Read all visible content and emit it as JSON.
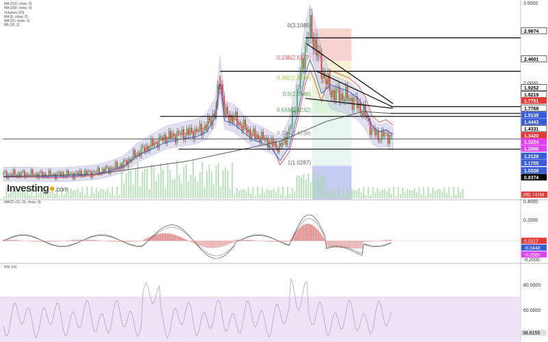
{
  "legend": [
    "MA (100, close, 0)",
    "MA (200, close, 0)",
    "Volumes (20)",
    "MA (5, close, 0)",
    "MA (10, close, 0)",
    "BB (20, 2)"
  ],
  "logo": {
    "name": "Investing",
    "suffix": ".com"
  },
  "macd_label": "MACD (12, 26, close, 9)",
  "rsi_label": "RSI (14)",
  "colors": {
    "up": "#4caf50",
    "down": "#e53935",
    "ma_red": "#e05a4f",
    "ma_blue": "#3a5bd9",
    "ma_black": "#555555",
    "bb_fill": "#c8c8e8",
    "volume": "#a8d8a8"
  },
  "chart_data": [
    {
      "type": "candlestick",
      "title": "",
      "ylim": [
        0.7,
        3.5
      ],
      "yticks": [
        "3.5000",
        "2.0000"
      ],
      "fibonacci": [
        {
          "label": "0(3.1085)",
          "price": 3.1085,
          "color": "#555555"
        },
        {
          "label": "0.236(2.6177)",
          "price": 2.6177,
          "color": "#d9534f"
        },
        {
          "label": "0.382(2.3140)",
          "price": 2.314,
          "color": "#9ccc3c"
        },
        {
          "label": "0.5(2.0686)",
          "price": 2.0686,
          "color": "#43a047"
        },
        {
          "label": "0.618(1.8232)",
          "price": 1.8232,
          "color": "#43a047"
        },
        {
          "label": "0.786(1.4739)",
          "price": 1.4739,
          "color": "#888888"
        },
        {
          "label": "1(1.0287)",
          "price": 1.0287,
          "color": "#555555"
        }
      ],
      "price_tags": [
        {
          "value": "2.9674",
          "bg": "#ffffff",
          "fg": "#000000"
        },
        {
          "value": "2.4601",
          "bg": "#ffffff",
          "fg": "#000000"
        },
        {
          "value": "1.9252",
          "bg": "#ffffff",
          "fg": "#000000"
        },
        {
          "value": "1.8219",
          "bg": "#ffffff",
          "fg": "#000000"
        },
        {
          "value": "1.7751",
          "bg": "#e53935",
          "fg": "#ffffff"
        },
        {
          "value": "1.7768",
          "bg": "#ffffff",
          "fg": "#000000"
        },
        {
          "value": "1.5135",
          "bg": "#3a5bd9",
          "fg": "#ffffff"
        },
        {
          "value": "1.4443",
          "bg": "#3a5bd9",
          "fg": "#ffffff"
        },
        {
          "value": "1.4331",
          "bg": "#ffffff",
          "fg": "#000000"
        },
        {
          "value": "1.3420",
          "bg": "#e53935",
          "fg": "#ffffff"
        },
        {
          "value": "1.3224",
          "bg": "#e040fb",
          "fg": "#ffffff"
        },
        {
          "value": "1.2886",
          "bg": "#e040fb",
          "fg": "#ffffff"
        },
        {
          "value": "1.2128",
          "bg": "#3a5bd9",
          "fg": "#ffffff"
        },
        {
          "value": "1.1705",
          "bg": "#3a5bd9",
          "fg": "#ffffff"
        },
        {
          "value": "1.0338",
          "bg": "#3a5bd9",
          "fg": "#ffffff"
        },
        {
          "value": "0.8374",
          "bg": "#000000",
          "fg": "#ffffff"
        }
      ],
      "volume_tag": "285.741M",
      "trend_lines": [
        {
          "from": [
            0.6575,
            2.88
          ],
          "to": [
            0.845,
            1.97
          ]
        },
        {
          "from": [
            0.68,
            2.46
          ],
          "to": [
            0.845,
            1.92
          ]
        },
        {
          "from": [
            0.655,
            2.05
          ],
          "to": [
            0.845,
            1.9
          ]
        }
      ],
      "close_path": [
        [
          0,
          0.9
        ],
        [
          0.05,
          0.9
        ],
        [
          0.1,
          0.89
        ],
        [
          0.15,
          0.9
        ],
        [
          0.2,
          0.93
        ],
        [
          0.23,
          0.98
        ],
        [
          0.26,
          1.05
        ],
        [
          0.29,
          1.22
        ],
        [
          0.32,
          1.34
        ],
        [
          0.35,
          1.45
        ],
        [
          0.38,
          1.5
        ],
        [
          0.42,
          1.55
        ],
        [
          0.44,
          1.62
        ],
        [
          0.46,
          1.85
        ],
        [
          0.47,
          2.4
        ],
        [
          0.48,
          1.8
        ],
        [
          0.5,
          1.75
        ],
        [
          0.52,
          1.62
        ],
        [
          0.54,
          1.5
        ],
        [
          0.56,
          1.45
        ],
        [
          0.58,
          1.38
        ],
        [
          0.6,
          1.3
        ],
        [
          0.62,
          1.55
        ],
        [
          0.64,
          2.2
        ],
        [
          0.655,
          2.85
        ],
        [
          0.665,
          3.1
        ],
        [
          0.675,
          2.9
        ],
        [
          0.69,
          2.5
        ],
        [
          0.71,
          2.15
        ],
        [
          0.73,
          2.1
        ],
        [
          0.75,
          2.05
        ],
        [
          0.77,
          1.95
        ],
        [
          0.785,
          1.8
        ],
        [
          0.8,
          1.55
        ],
        [
          0.815,
          1.47
        ],
        [
          0.83,
          1.5
        ],
        [
          0.845,
          1.43
        ]
      ],
      "macd": {
        "yticks": [
          "0.4000",
          "0.2000",
          "-0.2000"
        ],
        "tags": [
          "0.0117",
          "-0.0448",
          "-0.0585"
        ]
      },
      "rsi": {
        "yticks": [
          "80.0000",
          "60.0000"
        ],
        "tag": "38.6155"
      }
    }
  ]
}
